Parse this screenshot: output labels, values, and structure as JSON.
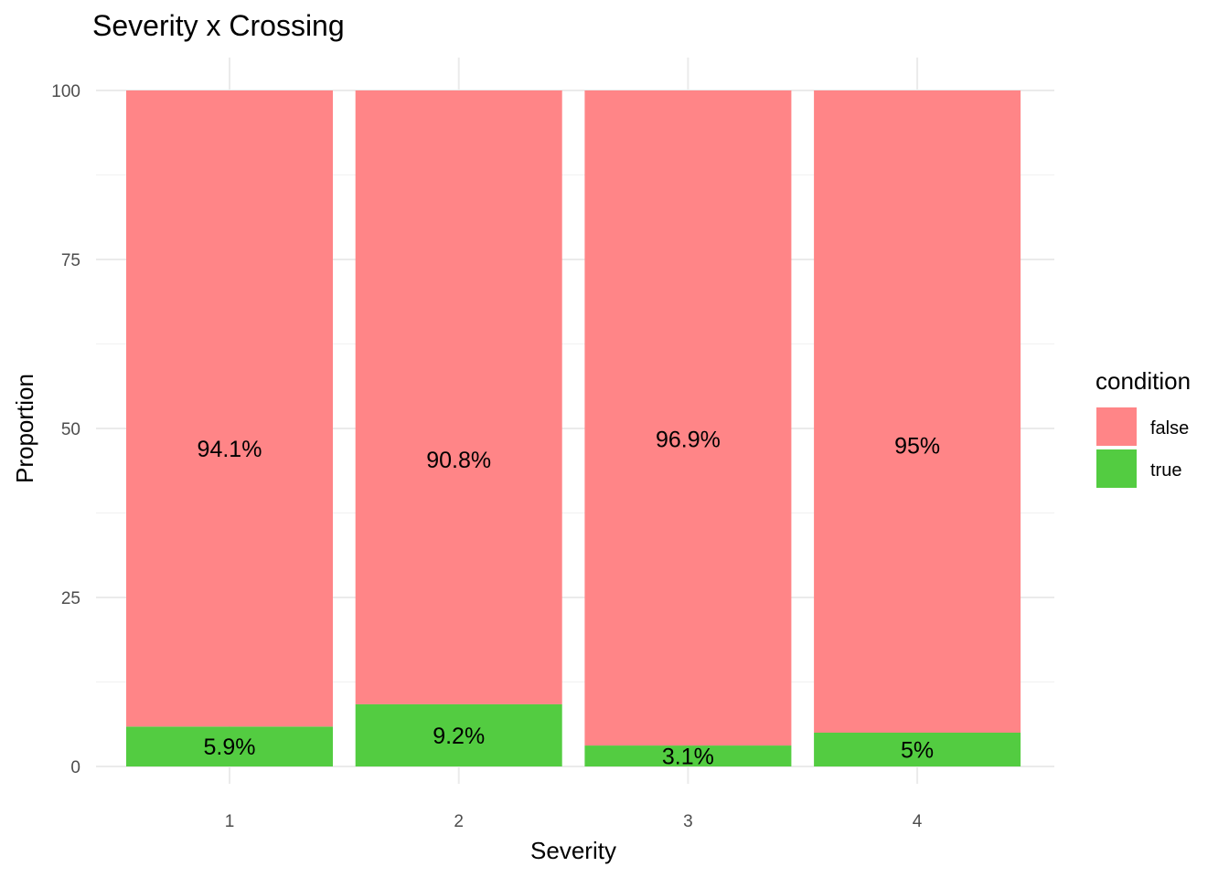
{
  "chart_data": {
    "type": "bar",
    "stacked": true,
    "title": "Severity x Crossing",
    "xlabel": "Severity",
    "ylabel": "Proportion",
    "categories": [
      "1",
      "2",
      "3",
      "4"
    ],
    "ylim": [
      0,
      100
    ],
    "yticks": [
      "0",
      "25",
      "50",
      "75",
      "100"
    ],
    "grid": true,
    "legend": {
      "title": "condition",
      "placement": "right"
    },
    "series": [
      {
        "name": "true",
        "color": "#53cc41",
        "values": [
          5.9,
          9.2,
          3.1,
          5.0
        ],
        "labels": [
          "5.9%",
          "9.2%",
          "3.1%",
          "5%"
        ]
      },
      {
        "name": "false",
        "color": "#ff8587",
        "values": [
          94.1,
          90.8,
          96.9,
          95.0
        ],
        "labels": [
          "94.1%",
          "90.8%",
          "96.9%",
          "95%"
        ]
      }
    ]
  }
}
